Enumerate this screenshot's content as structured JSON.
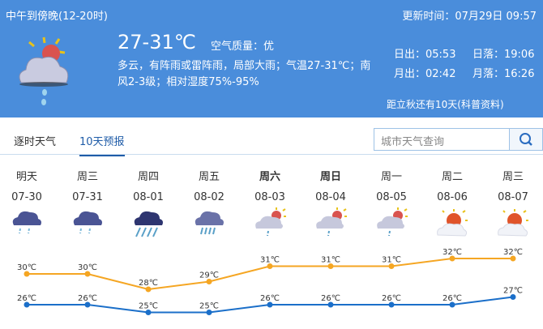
{
  "header": {
    "period": "中午到傍晚(12-20时)",
    "updated": "更新时间：07月29日 09:57",
    "temp": "27-31℃",
    "air_quality": "空气质量：优",
    "desc1": "多云，有阵雨或雷阵雨，局部大雨；气温27-31℃；南",
    "desc2": "风2-3级；相对湿度75%-95%",
    "sunrise": "日出：05:53",
    "sunset": "日落：19:06",
    "moonrise": "月出：02:42",
    "moonset": "月落：16:26",
    "solar_term": "距立秋还有10天(科普资料)",
    "icon": "cloudy-sun-rain-icon"
  },
  "tabs": [
    {
      "label": "逐时天气",
      "active": false
    },
    {
      "label": "10天预报",
      "active": true
    }
  ],
  "search": {
    "placeholder": "城市天气查询",
    "icon": "search-icon"
  },
  "colors": {
    "header": "#4a8ddb",
    "high": "#f5a623",
    "low": "#1b6fc9"
  },
  "forecast": [
    {
      "day": "明天",
      "date": "07-30",
      "icon": "rain",
      "high": 30,
      "low": 26,
      "high_label": "30℃",
      "low_label": "26℃",
      "bold": false
    },
    {
      "day": "周三",
      "date": "07-31",
      "icon": "rain",
      "high": 30,
      "low": 26,
      "high_label": "30℃",
      "low_label": "26℃",
      "bold": false
    },
    {
      "day": "周四",
      "date": "08-01",
      "icon": "heavy-rain",
      "high": 28,
      "low": 25,
      "high_label": "28℃",
      "low_label": "25℃",
      "bold": false
    },
    {
      "day": "周五",
      "date": "08-02",
      "icon": "moderate-rain",
      "high": 29,
      "low": 25,
      "high_label": "29℃",
      "low_label": "25℃",
      "bold": false
    },
    {
      "day": "周六",
      "date": "08-03",
      "icon": "cloudy-sun-shower",
      "high": 31,
      "low": 26,
      "high_label": "31℃",
      "low_label": "26℃",
      "bold": true
    },
    {
      "day": "周日",
      "date": "08-04",
      "icon": "cloudy-sun-shower",
      "high": 31,
      "low": 26,
      "high_label": "31℃",
      "low_label": "26℃",
      "bold": true
    },
    {
      "day": "周一",
      "date": "08-05",
      "icon": "cloudy-sun-shower",
      "high": 31,
      "low": 26,
      "high_label": "31℃",
      "low_label": "26℃",
      "bold": false
    },
    {
      "day": "周二",
      "date": "08-06",
      "icon": "partly-cloudy",
      "high": 32,
      "low": 26,
      "high_label": "32℃",
      "low_label": "26℃",
      "bold": false
    },
    {
      "day": "周三",
      "date": "08-07",
      "icon": "partly-cloudy",
      "high": 32,
      "low": 27,
      "high_label": "32℃",
      "low_label": "27℃",
      "bold": false
    }
  ]
}
